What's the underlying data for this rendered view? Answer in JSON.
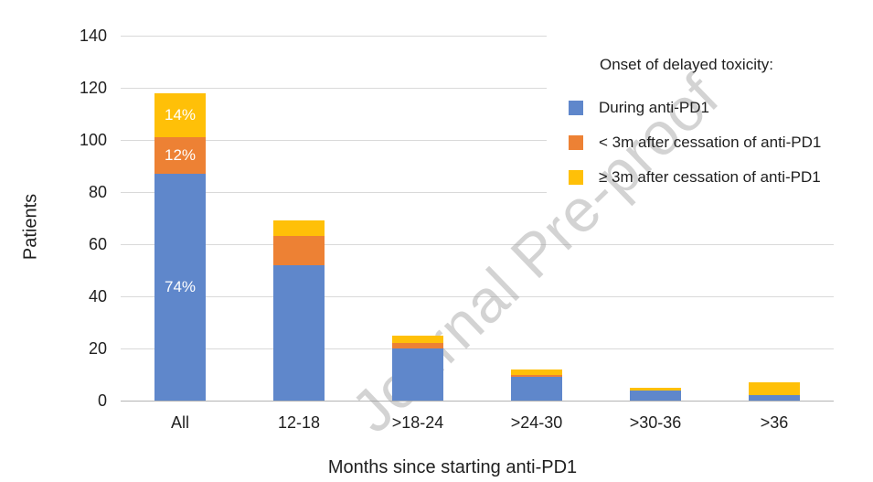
{
  "figure": {
    "watermark": "Journal Pre-proof"
  },
  "chart_data": {
    "type": "bar",
    "stacked": true,
    "title": "",
    "categories": [
      "All",
      "12-18",
      ">18-24",
      ">24-30",
      ">30-36",
      ">36"
    ],
    "xlabel": "Months since starting anti-PD1",
    "ylabel": "Patients",
    "ylim": [
      0,
      140
    ],
    "yticks": [
      0,
      20,
      40,
      60,
      80,
      100,
      120,
      140
    ],
    "grid": true,
    "legend_title": "Onset of delayed toxicity:",
    "legend_position": "top-right-inside",
    "series": [
      {
        "name": "During anti-PD1",
        "color": "#5f87cb",
        "values": [
          87,
          52,
          20,
          9,
          4,
          2
        ],
        "segment_labels": [
          "74%",
          "",
          "",
          "",
          "",
          ""
        ]
      },
      {
        "name": "< 3m after cessation of anti-PD1",
        "color": "#ed8134",
        "values": [
          14,
          11,
          2,
          1,
          0,
          0
        ],
        "segment_labels": [
          "12%",
          "",
          "",
          "",
          "",
          ""
        ]
      },
      {
        "name": "≥ 3m after cessation of anti-PD1",
        "color": "#ffc008",
        "values": [
          17,
          6,
          3,
          2,
          1,
          5
        ],
        "segment_labels": [
          "14%",
          "",
          "",
          "",
          "",
          ""
        ]
      }
    ],
    "totals": [
      118,
      69,
      25,
      12,
      5,
      7
    ]
  }
}
